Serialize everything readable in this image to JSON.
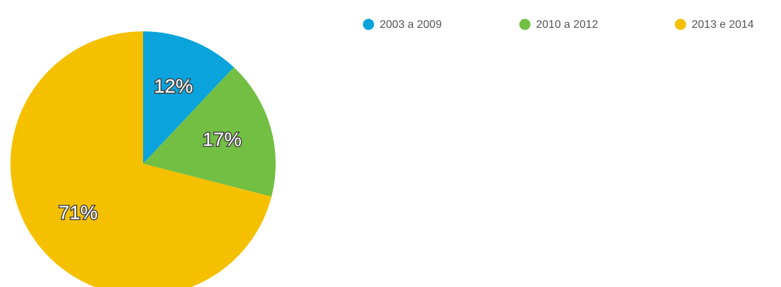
{
  "chart_data": {
    "type": "pie",
    "categories": [
      "2003 a 2009",
      "2010 a 2012",
      "2013 e 2014"
    ],
    "values": [
      12,
      17,
      71
    ],
    "value_labels": [
      "12%",
      "17%",
      "71%"
    ],
    "colors": [
      "#0aa3dc",
      "#72bf44",
      "#f5c000"
    ],
    "legend": "top"
  }
}
